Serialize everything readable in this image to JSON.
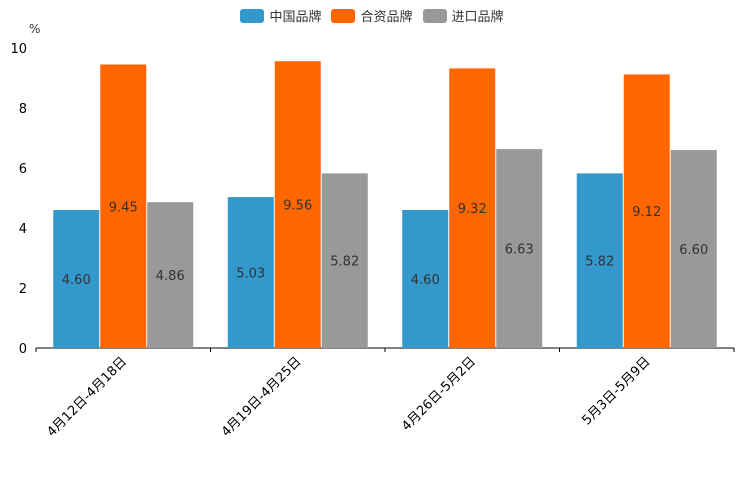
{
  "chart_data": {
    "type": "bar",
    "title": "",
    "unit_label": "%",
    "categories": [
      "4月12日-4月18日",
      "4月19日-4月25日",
      "4月26日-5月2日",
      "5月3日-5月9日"
    ],
    "series": [
      {
        "name": "中国品牌",
        "color": "#3398cc",
        "values": [
          4.6,
          5.03,
          4.6,
          5.82
        ],
        "labels": [
          "4.60",
          "5.03",
          "4.60",
          "5.82"
        ]
      },
      {
        "name": "合资品牌",
        "color": "#ff6600",
        "values": [
          9.45,
          9.56,
          9.32,
          9.12
        ],
        "labels": [
          "9.45",
          "9.56",
          "9.32",
          "9.12"
        ]
      },
      {
        "name": "进口品牌",
        "color": "#999999",
        "values": [
          4.86,
          5.82,
          6.63,
          6.6
        ],
        "labels": [
          "4.86",
          "5.82",
          "6.63",
          "6.60"
        ]
      }
    ],
    "ylim": [
      0,
      10
    ],
    "yticks": [
      "0",
      "2",
      "4",
      "6",
      "8",
      "10"
    ],
    "ytick_values": [
      0,
      2,
      4,
      6,
      8,
      10
    ],
    "legend_position": "top-center",
    "grid": false
  }
}
